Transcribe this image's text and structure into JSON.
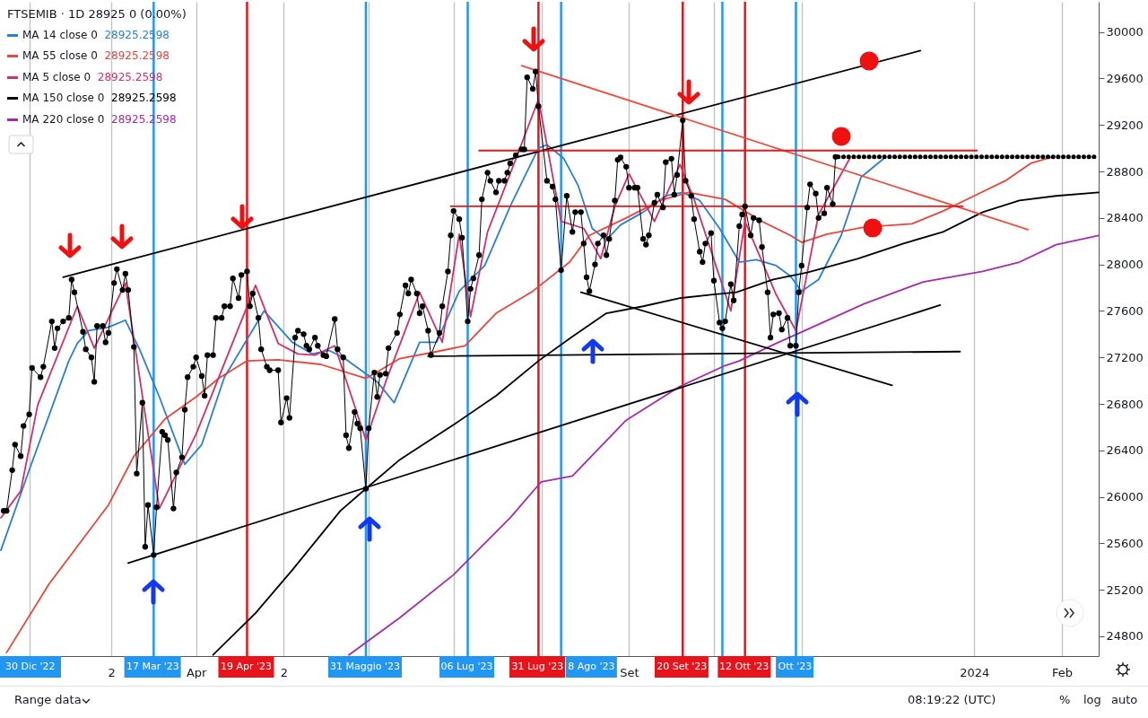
{
  "chart_data": {
    "type": "line",
    "title": "FTSEMIB · 1D  28925  0 (0.00%)",
    "legend": "top left",
    "grid": "x",
    "xlim": [
      "2023-01-22",
      "2024-02-14"
    ],
    "xticks": [
      {
        "value": "2023-02-01",
        "label": null
      },
      {
        "value": "2023-03-02",
        "label": "2"
      },
      {
        "value": "2023-04-01",
        "label": "Apr"
      },
      {
        "value": "2023-05-02",
        "label": "2"
      },
      {
        "value": "2023-06-01",
        "label": null
      },
      {
        "value": "2023-07-01",
        "label": null
      },
      {
        "value": "2023-08-01",
        "label": null
      },
      {
        "value": "2023-09-01",
        "label": "Set"
      },
      {
        "value": "2023-10-01",
        "label": null
      },
      {
        "value": "2023-11-01",
        "label": null
      },
      {
        "value": "2024-01-01",
        "label": "2024"
      },
      {
        "value": "2024-02-01",
        "label": "Feb"
      }
    ],
    "ylim": [
      24630,
      30260
    ],
    "yticks": [
      24800,
      25200,
      25600,
      26000,
      26400,
      26800,
      27200,
      27600,
      28000,
      28400,
      28800,
      29200,
      29600,
      30000
    ],
    "ref_lines": [
      {
        "axis": "x",
        "value": "2023-03-17",
        "label": "17 Mar '23",
        "color": "#2196f3"
      },
      {
        "axis": "x",
        "value": "2023-04-19",
        "label": "19 Apr '23",
        "color": "#e8141c"
      },
      {
        "axis": "x",
        "value": "2023-05-31",
        "label": "31 Maggio '23",
        "color": "#2196f3"
      },
      {
        "axis": "x",
        "value": "2023-07-06",
        "label": "06 Lug '23",
        "color": "#2196f3"
      },
      {
        "axis": "x",
        "value": "2023-07-31",
        "label": "31 Lug '23",
        "color": "#e8141c"
      },
      {
        "axis": "x",
        "value": "2023-08-08",
        "label": "8 Ago '23",
        "color": "#2196f3"
      },
      {
        "axis": "x",
        "value": "2023-09-20",
        "label": "20 Set '23",
        "color": "#e8141c"
      },
      {
        "axis": "x",
        "value": "2023-10-04",
        "label": null,
        "color": "#2196f3"
      },
      {
        "axis": "x",
        "value": "2023-10-12",
        "label": "12 Ott '23",
        "color": "#e8141c"
      },
      {
        "axis": "x",
        "value": "2023-10-30",
        "label": "Ott '23",
        "color": "#2196f3"
      }
    ],
    "annotations": [
      "30 Dic '22",
      "Range data",
      "08:19:22 (UTC)",
      "%",
      "log",
      "auto"
    ],
    "series": [
      {
        "name": "MA 14 close 0 28925.2598",
        "color": "#2a7fd0",
        "x": [
          "2023-01-22",
          "2023-02-01",
          "2023-02-15",
          "2023-02-18",
          "2023-02-22",
          "2023-03-01",
          "2023-03-07",
          "2023-03-12",
          "2023-03-19",
          "2023-03-28",
          "2023-04-03",
          "2023-04-11",
          "2023-04-25",
          "2023-05-05",
          "2023-05-12",
          "2023-05-18",
          "2023-05-23",
          "2023-06-04",
          "2023-06-10",
          "2023-06-19",
          "2023-06-25",
          "2023-07-03",
          "2023-07-12",
          "2023-07-21",
          "2023-07-31",
          "2023-08-03",
          "2023-08-09",
          "2023-08-14",
          "2023-08-19",
          "2023-08-24",
          "2023-08-29",
          "2023-09-06",
          "2023-09-14",
          "2023-09-20",
          "2023-09-26",
          "2023-10-03",
          "2023-10-10",
          "2023-10-16",
          "2023-10-23",
          "2023-10-28",
          "2023-11-01",
          "2023-11-07",
          "2023-11-15",
          "2023-11-22",
          "2023-11-30"
        ],
        "values": [
          25540,
          26230,
          27170,
          27320,
          27430,
          27460,
          27520,
          27270,
          26860,
          26280,
          26450,
          27030,
          27600,
          27330,
          27230,
          27260,
          27200,
          26990,
          26810,
          27330,
          27330,
          27770,
          27990,
          28500,
          29000,
          29030,
          28910,
          28680,
          28310,
          28210,
          28340,
          28450,
          28590,
          28620,
          28550,
          28310,
          28020,
          28040,
          27990,
          27900,
          27770,
          27870,
          28250,
          28750,
          28910
        ]
      },
      {
        "name": "MA 55 close 0 28925.2598",
        "color": "#e8453c",
        "x": [
          "2023-01-24",
          "2023-02-08",
          "2023-03-01",
          "2023-03-10",
          "2023-03-21",
          "2023-04-01",
          "2023-04-09",
          "2023-04-19",
          "2023-04-30",
          "2023-05-15",
          "2023-05-31",
          "2023-06-05",
          "2023-06-12",
          "2023-06-25",
          "2023-07-05",
          "2023-07-16",
          "2023-07-29",
          "2023-08-11",
          "2023-08-18",
          "2023-08-31",
          "2023-09-12",
          "2023-09-22",
          "2023-10-05",
          "2023-10-18",
          "2023-10-28",
          "2023-11-01",
          "2023-11-10",
          "2023-11-23",
          "2023-12-10",
          "2023-12-21",
          "2024-01-01",
          "2024-01-12",
          "2024-01-21",
          "2024-01-28"
        ],
        "values": [
          24660,
          25250,
          25930,
          26350,
          26670,
          26860,
          27020,
          27170,
          27180,
          27140,
          27020,
          27090,
          27190,
          27250,
          27300,
          27580,
          27770,
          28020,
          28250,
          28400,
          28550,
          28620,
          28560,
          28370,
          28250,
          28190,
          28260,
          28320,
          28350,
          28460,
          28590,
          28720,
          28870,
          28920
        ]
      },
      {
        "name": "MA 5 close 0 28925.2598",
        "color": "#d0306b",
        "x": [
          "2023-01-22",
          "2023-01-29",
          "2023-02-04",
          "2023-02-18",
          "2023-02-24",
          "2023-03-07",
          "2023-03-19",
          "2023-04-01",
          "2023-04-22",
          "2023-04-30",
          "2023-05-07",
          "2023-05-13",
          "2023-05-20",
          "2023-05-31",
          "2023-06-07",
          "2023-06-19",
          "2023-06-27",
          "2023-07-03",
          "2023-07-07",
          "2023-07-13",
          "2023-07-21",
          "2023-07-31",
          "2023-08-08",
          "2023-08-16",
          "2023-08-22",
          "2023-08-27",
          "2023-09-01",
          "2023-09-10",
          "2023-09-19",
          "2023-09-24",
          "2023-10-07",
          "2023-10-12",
          "2023-10-23",
          "2023-10-30",
          "2023-11-07",
          "2023-11-18"
        ],
        "values": [
          25820,
          26050,
          26790,
          27640,
          27280,
          27840,
          25900,
          26540,
          27820,
          27320,
          27230,
          27220,
          27300,
          26490,
          26990,
          27760,
          27330,
          28260,
          27550,
          28280,
          28780,
          29420,
          28370,
          28310,
          28050,
          28500,
          28780,
          28370,
          28860,
          28560,
          27600,
          28370,
          27740,
          27430,
          28430,
          28910
        ]
      },
      {
        "name": "MA 150 close 0 28925.2598",
        "color": "#000000",
        "x": [
          "2023-04-07",
          "2023-04-22",
          "2023-05-05",
          "2023-05-22",
          "2023-05-31",
          "2023-06-12",
          "2023-07-01",
          "2023-07-16",
          "2023-07-31",
          "2023-08-12",
          "2023-08-24",
          "2023-09-06",
          "2023-09-19",
          "2023-09-30",
          "2023-10-09",
          "2023-10-22",
          "2023-11-03",
          "2023-11-21",
          "2023-12-07",
          "2023-12-21",
          "2024-01-04",
          "2024-01-17",
          "2024-01-30",
          "2024-02-14"
        ],
        "values": [
          24640,
          25000,
          25370,
          25880,
          26070,
          26320,
          26620,
          26870,
          27170,
          27380,
          27580,
          27640,
          27710,
          27740,
          27760,
          27870,
          27930,
          28050,
          28180,
          28280,
          28450,
          28550,
          28590,
          28620
        ]
      },
      {
        "name": "MA 220 close 0 28925.2598",
        "color": "#a42ca8",
        "x": [
          "2023-05-25",
          "2023-06-12",
          "2023-07-01",
          "2023-07-21",
          "2023-08-01",
          "2023-08-12",
          "2023-08-31",
          "2023-09-19",
          "2023-10-05",
          "2023-10-10",
          "2023-10-23",
          "2023-11-03",
          "2023-11-23",
          "2023-12-14",
          "2024-01-04",
          "2024-01-17",
          "2024-01-30",
          "2024-02-14"
        ],
        "values": [
          24640,
          24960,
          25330,
          25820,
          26130,
          26180,
          26660,
          26950,
          27130,
          27170,
          27320,
          27440,
          27660,
          27850,
          27940,
          28020,
          28170,
          28250
        ]
      },
      {
        "color": "#000000",
        "x": [
          "2023-02-13",
          "2023-12-13"
        ],
        "values": [
          27890,
          29840
        ]
      },
      {
        "color": "#000000",
        "x": [
          "2023-03-08",
          "2023-12-20"
        ],
        "values": [
          25430,
          27650
        ]
      },
      {
        "color": "#000000",
        "x": [
          "2023-06-22",
          "2023-12-27"
        ],
        "values": [
          27210,
          27250
        ]
      },
      {
        "color": "#000000",
        "x": [
          "2023-08-15",
          "2023-12-03"
        ],
        "values": [
          27760,
          26960
        ]
      },
      {
        "color": "#ef4a3c",
        "x": [
          "2023-07-25",
          "2024-01-20"
        ],
        "values": [
          29710,
          28300
        ]
      },
      {
        "color": "#e3191c",
        "x": [
          "2023-07-10",
          "2024-01-02"
        ],
        "values": [
          28980,
          28980
        ]
      },
      {
        "color": "#e3191c",
        "x": [
          "2023-06-30",
          "2023-12-28"
        ],
        "values": [
          28500,
          28500
        ]
      },
      {
        "color": "#000000",
        "line_style": "dotted",
        "x": [
          "2023-11-14",
          "2024-02-14"
        ],
        "values": [
          28925,
          28925
        ]
      },
      {
        "color": "#000000",
        "marker": "circle",
        "x": [
          "2023-01-23",
          "2023-01-24",
          "2023-01-26",
          "2023-01-27",
          "2023-01-29",
          "2023-01-30",
          "2023-02-01",
          "2023-02-02",
          "2023-02-05",
          "2023-02-06",
          "2023-02-09",
          "2023-02-10",
          "2023-02-11",
          "2023-02-13",
          "2023-02-15",
          "2023-02-16",
          "2023-02-17",
          "2023-02-20",
          "2023-02-21",
          "2023-02-23",
          "2023-02-24",
          "2023-02-25",
          "2023-02-27",
          "2023-02-28",
          "2023-03-01",
          "2023-03-03",
          "2023-03-04",
          "2023-03-06",
          "2023-03-07",
          "2023-03-08",
          "2023-03-10",
          "2023-03-11",
          "2023-03-13",
          "2023-03-14",
          "2023-03-15",
          "2023-03-17",
          "2023-03-18",
          "2023-03-20",
          "2023-03-21",
          "2023-03-22",
          "2023-03-24",
          "2023-03-25",
          "2023-03-27",
          "2023-03-28",
          "2023-03-29",
          "2023-03-31",
          "2023-04-01",
          "2023-04-03",
          "2023-04-04",
          "2023-04-05",
          "2023-04-07",
          "2023-04-08",
          "2023-04-10",
          "2023-04-11",
          "2023-04-13",
          "2023-04-14",
          "2023-04-16",
          "2023-04-17",
          "2023-04-19",
          "2023-04-20",
          "2023-04-21",
          "2023-04-23",
          "2023-04-24",
          "2023-04-26",
          "2023-04-27",
          "2023-04-30",
          "2023-05-01",
          "2023-05-03",
          "2023-05-04",
          "2023-05-06",
          "2023-05-07",
          "2023-05-09",
          "2023-05-10",
          "2023-05-11",
          "2023-05-13",
          "2023-05-14",
          "2023-05-16",
          "2023-05-17",
          "2023-05-20",
          "2023-05-21",
          "2023-05-23",
          "2023-05-24",
          "2023-05-25",
          "2023-05-27",
          "2023-05-28",
          "2023-05-29",
          "2023-05-31",
          "2023-06-01",
          "2023-06-03",
          "2023-06-04",
          "2023-06-05",
          "2023-06-07",
          "2023-06-08",
          "2023-06-11",
          "2023-06-12",
          "2023-06-14",
          "2023-06-15",
          "2023-06-16",
          "2023-06-18",
          "2023-06-19",
          "2023-06-20",
          "2023-06-22",
          "2023-06-23",
          "2023-06-26",
          "2023-06-27",
          "2023-06-29",
          "2023-06-30",
          "2023-07-01",
          "2023-07-03",
          "2023-07-04",
          "2023-07-06",
          "2023-07-07",
          "2023-07-08",
          "2023-07-10",
          "2023-07-11",
          "2023-07-13",
          "2023-07-14",
          "2023-07-16",
          "2023-07-17",
          "2023-07-19",
          "2023-07-20",
          "2023-07-21",
          "2023-07-23",
          "2023-07-25",
          "2023-07-26",
          "2023-07-27",
          "2023-07-29",
          "2023-07-30",
          "2023-07-31",
          "2023-08-03",
          "2023-08-05",
          "2023-08-06",
          "2023-08-08",
          "2023-08-10",
          "2023-08-12",
          "2023-08-13",
          "2023-08-15",
          "2023-08-16",
          "2023-08-17",
          "2023-08-18",
          "2023-08-20",
          "2023-08-21",
          "2023-08-23",
          "2023-08-24",
          "2023-08-25",
          "2023-08-27",
          "2023-08-28",
          "2023-08-29",
          "2023-08-31",
          "2023-09-01",
          "2023-09-03",
          "2023-09-04",
          "2023-09-06",
          "2023-09-07",
          "2023-09-08",
          "2023-09-10",
          "2023-09-11",
          "2023-09-13",
          "2023-09-14",
          "2023-09-16",
          "2023-09-17",
          "2023-09-18",
          "2023-09-20",
          "2023-09-21",
          "2023-09-23",
          "2023-09-24",
          "2023-09-26",
          "2023-09-27",
          "2023-09-28",
          "2023-09-30",
          "2023-10-01",
          "2023-10-03",
          "2023-10-04",
          "2023-10-05",
          "2023-10-07",
          "2023-10-08",
          "2023-10-10",
          "2023-10-11",
          "2023-10-12",
          "2023-10-14",
          "2023-10-15",
          "2023-10-17",
          "2023-10-18",
          "2023-10-20",
          "2023-10-21",
          "2023-10-22",
          "2023-10-24",
          "2023-10-25",
          "2023-10-27",
          "2023-10-28",
          "2023-10-30",
          "2023-10-31",
          "2023-11-01",
          "2023-11-03",
          "2023-11-04",
          "2023-11-06",
          "2023-11-07",
          "2023-11-09",
          "2023-11-10",
          "2023-11-12",
          "2023-11-13"
        ],
        "values": [
          25880,
          25880,
          26230,
          26450,
          26350,
          26610,
          26710,
          27110,
          27030,
          27120,
          27510,
          27280,
          27450,
          27510,
          27540,
          27870,
          27760,
          27420,
          27270,
          27200,
          26990,
          27470,
          27470,
          27330,
          27410,
          27840,
          27960,
          27780,
          27920,
          27780,
          27290,
          26200,
          26810,
          25570,
          25930,
          25500,
          25910,
          26560,
          26530,
          26490,
          25900,
          26210,
          26340,
          26750,
          27030,
          27120,
          27200,
          27040,
          26870,
          27220,
          27220,
          27540,
          27540,
          27640,
          27640,
          27880,
          27710,
          27910,
          27940,
          27640,
          27750,
          27540,
          27270,
          27120,
          27090,
          27090,
          26640,
          26850,
          26680,
          27370,
          27430,
          27400,
          27300,
          27270,
          27370,
          27300,
          27220,
          27210,
          27530,
          27270,
          27200,
          26530,
          26420,
          26730,
          26630,
          26590,
          26070,
          26590,
          27070,
          26860,
          27050,
          27060,
          27280,
          27410,
          27570,
          27820,
          27750,
          27870,
          27750,
          27580,
          27640,
          27430,
          27220,
          27410,
          27640,
          27940,
          28250,
          28460,
          28390,
          28230,
          27510,
          27790,
          27880,
          28080,
          28560,
          28790,
          28720,
          28620,
          28720,
          28720,
          28790,
          28870,
          28940,
          28990,
          28990,
          29610,
          29510,
          29660,
          29360,
          28720,
          28670,
          28560,
          27950,
          28590,
          28280,
          28450,
          28450,
          28180,
          27890,
          27770,
          28000,
          28180,
          28250,
          28080,
          28220,
          28550,
          28900,
          28920,
          28840,
          28660,
          28660,
          28660,
          28220,
          28170,
          28250,
          28530,
          28600,
          28490,
          28880,
          28910,
          28600,
          28770,
          29240,
          28720,
          28590,
          28390,
          28110,
          28020,
          28180,
          28270,
          27860,
          27500,
          27450,
          27510,
          27830,
          27690,
          28330,
          28430,
          28500,
          28250,
          28400,
          28380,
          28150,
          27760,
          27370,
          27570,
          27580,
          27440,
          27540,
          27300,
          27300,
          27760,
          27990,
          28490,
          28690,
          28610,
          28400,
          28440,
          28660,
          28520,
          28925
        ]
      }
    ]
  }
}
